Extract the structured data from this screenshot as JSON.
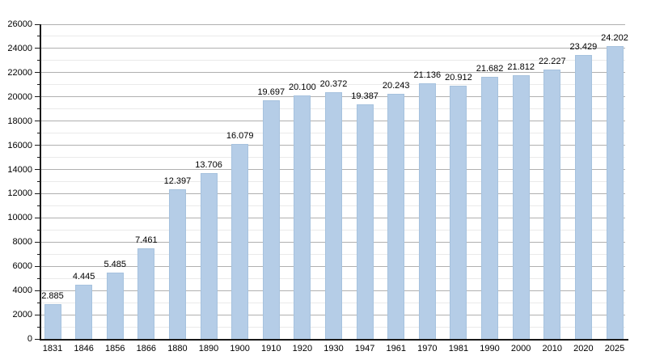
{
  "chart_data": {
    "type": "bar",
    "title": "",
    "xlabel": "",
    "ylabel": "",
    "categories": [
      "1831",
      "1846",
      "1856",
      "1866",
      "1880",
      "1890",
      "1900",
      "1910",
      "1920",
      "1930",
      "1947",
      "1961",
      "1970",
      "1981",
      "1990",
      "2000",
      "2010",
      "2020",
      "2025"
    ],
    "values": [
      2885,
      4445,
      5485,
      7461,
      12397,
      13706,
      16079,
      19697,
      20100,
      20372,
      19387,
      20243,
      21136,
      20912,
      21682,
      21812,
      22227,
      23429,
      24202
    ],
    "value_labels": [
      "2.885",
      "4.445",
      "5.485",
      "7.461",
      "12.397",
      "13.706",
      "16.079",
      "19.697",
      "20.100",
      "20.372",
      "19.387",
      "20.243",
      "21.136",
      "20.912",
      "21.682",
      "21.812",
      "22.227",
      "23.429",
      "24.202"
    ],
    "ylim": [
      0,
      26000
    ],
    "y_major_step": 2000,
    "y_minor_step": 1000,
    "grid": true,
    "legend_position": "none",
    "colors": {
      "bar_fill": "#b5cde7",
      "bar_border": "#a6c2de",
      "major_grid": "#b0b0b0",
      "minor_grid": "#eaeaea",
      "axis": "#1a1a1a",
      "text": "#000000",
      "background": "#ffffff"
    }
  }
}
